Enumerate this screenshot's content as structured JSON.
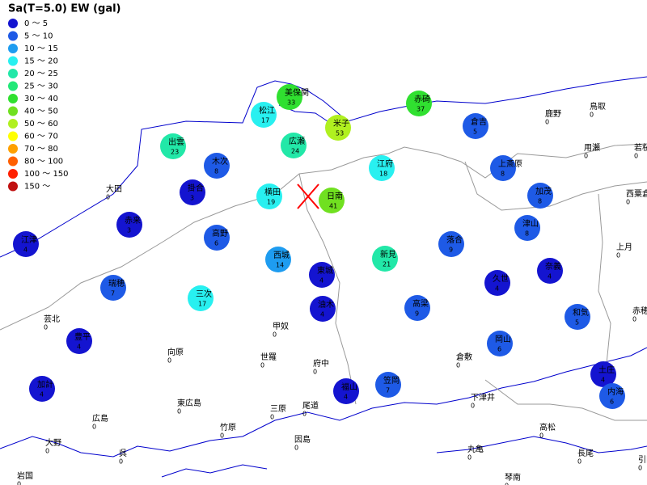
{
  "title": "Sa(T=5.0) EW (gal)",
  "legend": [
    {
      "label": "0 ～ 5",
      "color": "#1414d0"
    },
    {
      "label": "5 ～ 10",
      "color": "#1e5ae6"
    },
    {
      "label": "10 ～ 15",
      "color": "#1e9cf0"
    },
    {
      "label": "15 ～ 20",
      "color": "#28f0f0"
    },
    {
      "label": "20 ～ 25",
      "color": "#22e8a8"
    },
    {
      "label": "25 ～ 30",
      "color": "#22e878"
    },
    {
      "label": "30 ～ 40",
      "color": "#30e030"
    },
    {
      "label": "40 ～ 50",
      "color": "#70e020"
    },
    {
      "label": "50 ～ 60",
      "color": "#b0f020"
    },
    {
      "label": "60 ～ 70",
      "color": "#ffff00"
    },
    {
      "label": "70 ～ 80",
      "color": "#ffa000"
    },
    {
      "label": "80 ～ 100",
      "color": "#ff6000"
    },
    {
      "label": "100 ～ 150",
      "color": "#ff2000"
    },
    {
      "label": "150 ～",
      "color": "#c01010"
    }
  ],
  "stations": [
    {
      "name": "美保関",
      "value": 33
    },
    {
      "name": "松江",
      "value": 17
    },
    {
      "name": "米子",
      "value": 53
    },
    {
      "name": "赤碕",
      "value": 37
    },
    {
      "name": "倉吉",
      "value": 5
    },
    {
      "name": "出雲",
      "value": 23
    },
    {
      "name": "広瀬",
      "value": 24
    },
    {
      "name": "木次",
      "value": 8
    },
    {
      "name": "江府",
      "value": 18
    },
    {
      "name": "上斎原",
      "value": 8
    },
    {
      "name": "掛合",
      "value": 3
    },
    {
      "name": "横田",
      "value": 19
    },
    {
      "name": "日南",
      "value": 41
    },
    {
      "name": "加茂",
      "value": 8
    },
    {
      "name": "赤来",
      "value": 3
    },
    {
      "name": "津山",
      "value": 8
    },
    {
      "name": "江津",
      "value": 4
    },
    {
      "name": "高野",
      "value": 6
    },
    {
      "name": "落合",
      "value": 9
    },
    {
      "name": "西城",
      "value": 14
    },
    {
      "name": "新見",
      "value": 21
    },
    {
      "name": "東城",
      "value": 4
    },
    {
      "name": "奈義",
      "value": 4
    },
    {
      "name": "瑞穂",
      "value": 7
    },
    {
      "name": "久世",
      "value": 4
    },
    {
      "name": "三次",
      "value": 17
    },
    {
      "name": "油木",
      "value": 4
    },
    {
      "name": "高梁",
      "value": 9
    },
    {
      "name": "和気",
      "value": 5
    },
    {
      "name": "豊平",
      "value": 4
    },
    {
      "name": "岡山",
      "value": 6
    },
    {
      "name": "土庄",
      "value": 4
    },
    {
      "name": "加計",
      "value": 4
    },
    {
      "name": "福山",
      "value": 4
    },
    {
      "name": "笠岡",
      "value": 7
    },
    {
      "name": "内海",
      "value": 6
    },
    {
      "name": "鹿野",
      "value": 0
    },
    {
      "name": "鳥取",
      "value": 0
    },
    {
      "name": "用瀬",
      "value": 0
    },
    {
      "name": "若桜",
      "value": 0
    },
    {
      "name": "大田",
      "value": 0
    },
    {
      "name": "西粟倉",
      "value": 0
    },
    {
      "name": "上月",
      "value": 0
    },
    {
      "name": "赤穂",
      "value": 0
    },
    {
      "name": "芸北",
      "value": 0
    },
    {
      "name": "甲奴",
      "value": 0
    },
    {
      "name": "向原",
      "value": 0
    },
    {
      "name": "世羅",
      "value": 0
    },
    {
      "name": "倉敷",
      "value": 0
    },
    {
      "name": "府中",
      "value": 0
    },
    {
      "name": "下津井",
      "value": 0
    },
    {
      "name": "東広島",
      "value": 0
    },
    {
      "name": "三原",
      "value": 0
    },
    {
      "name": "尾道",
      "value": 0
    },
    {
      "name": "広島",
      "value": 0
    },
    {
      "name": "竹原",
      "value": 0
    },
    {
      "name": "高松",
      "value": 0
    },
    {
      "name": "因島",
      "value": 0
    },
    {
      "name": "大野",
      "value": 0
    },
    {
      "name": "呉",
      "value": 0
    },
    {
      "name": "丸亀",
      "value": 0
    },
    {
      "name": "長尾",
      "value": 0
    },
    {
      "name": "引田",
      "value": 0
    },
    {
      "name": "岩国",
      "value": 0
    },
    {
      "name": "琴南",
      "value": 0
    }
  ]
}
